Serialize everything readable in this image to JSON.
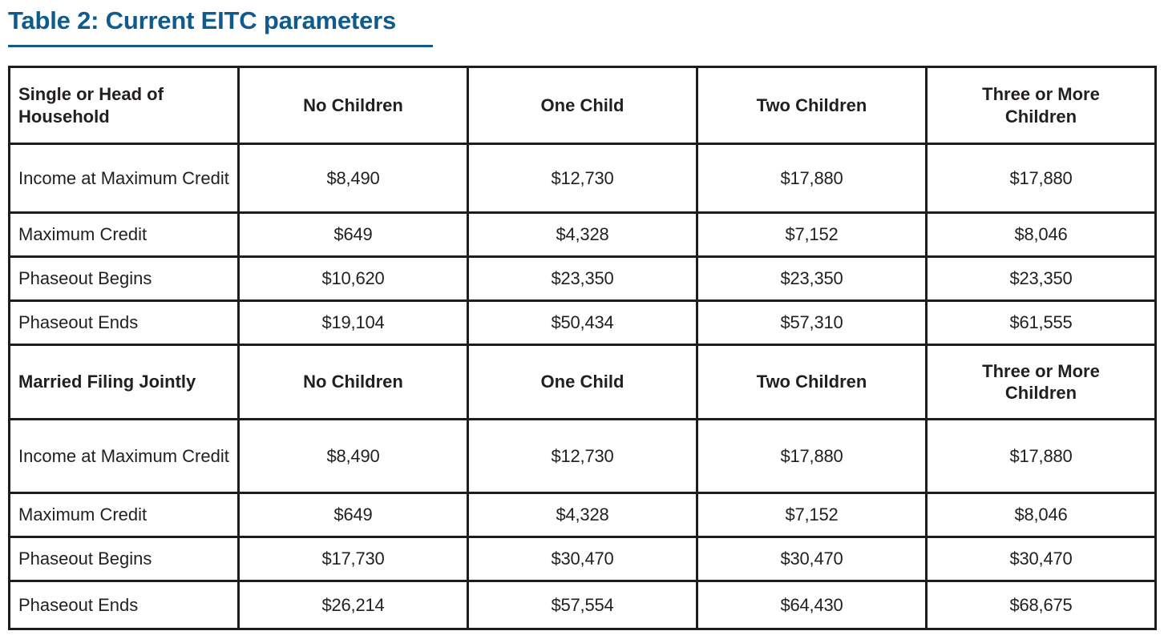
{
  "title": "Table 2: Current EITC parameters",
  "colors": {
    "accent_blue": "#0F5B8E",
    "border_black": "#1d1d1b",
    "text": "#231F20"
  },
  "table": {
    "sections": [
      {
        "header": {
          "label": "Single or Head of Household",
          "columns": [
            "No Children",
            "One Child",
            "Two Children",
            "Three or More Children"
          ]
        },
        "rows": [
          {
            "label": "Income at Maximum Credit",
            "values": [
              "$8,490",
              "$12,730",
              "$17,880",
              "$17,880"
            ]
          },
          {
            "label": "Maximum Credit",
            "values": [
              "$649",
              "$4,328",
              "$7,152",
              "$8,046"
            ]
          },
          {
            "label": "Phaseout Begins",
            "values": [
              "$10,620",
              "$23,350",
              "$23,350",
              "$23,350"
            ]
          },
          {
            "label": "Phaseout Ends",
            "values": [
              "$19,104",
              "$50,434",
              "$57,310",
              "$61,555"
            ]
          }
        ]
      },
      {
        "header": {
          "label": "Married Filing Jointly",
          "columns": [
            "No Children",
            "One Child",
            "Two Children",
            "Three or More Children"
          ]
        },
        "rows": [
          {
            "label": "Income at Maximum Credit",
            "values": [
              "$8,490",
              "$12,730",
              "$17,880",
              "$17,880"
            ]
          },
          {
            "label": "Maximum Credit",
            "values": [
              "$649",
              "$4,328",
              "$7,152",
              "$8,046"
            ]
          },
          {
            "label": "Phaseout Begins",
            "values": [
              "$17,730",
              "$30,470",
              "$30,470",
              "$30,470"
            ]
          },
          {
            "label": "Phaseout Ends",
            "values": [
              "$26,214",
              "$57,554",
              "$64,430",
              "$68,675"
            ]
          }
        ]
      }
    ]
  }
}
